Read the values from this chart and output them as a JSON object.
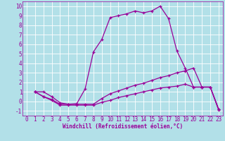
{
  "background_color": "#b2e0e8",
  "grid_color": "#ffffff",
  "line_color": "#990099",
  "marker": "+",
  "markersize": 3,
  "linewidth": 0.9,
  "markeredgewidth": 0.9,
  "xlabel": "Windchill (Refroidissement éolien,°C)",
  "xlabel_fontsize": 5.5,
  "tick_fontsize": 5.5,
  "xlim": [
    -0.5,
    23.5
  ],
  "ylim": [
    -1.5,
    10.5
  ],
  "xticks": [
    0,
    1,
    2,
    3,
    4,
    5,
    6,
    7,
    8,
    9,
    10,
    11,
    12,
    13,
    14,
    15,
    16,
    17,
    18,
    19,
    20,
    21,
    22,
    23
  ],
  "yticks": [
    -1,
    0,
    1,
    2,
    3,
    4,
    5,
    6,
    7,
    8,
    9,
    10
  ],
  "line1_x": [
    1,
    2,
    3,
    4,
    5,
    6,
    7,
    8,
    9,
    10,
    11,
    12,
    13,
    14,
    15,
    16,
    17,
    18,
    19,
    20,
    21,
    22,
    23
  ],
  "line1_y": [
    1.0,
    1.0,
    0.5,
    -0.15,
    -0.3,
    -0.25,
    1.3,
    5.2,
    6.5,
    8.8,
    9.0,
    9.2,
    9.5,
    9.3,
    9.5,
    10.0,
    8.7,
    5.3,
    3.5,
    1.5,
    1.5,
    1.5,
    -0.8
  ],
  "line2_x": [
    1,
    2,
    3,
    4,
    5,
    6,
    7,
    8,
    9,
    10,
    11,
    12,
    13,
    14,
    15,
    16,
    17,
    18,
    19,
    20,
    21,
    22,
    23
  ],
  "line2_y": [
    1.0,
    0.5,
    0.2,
    -0.3,
    -0.3,
    -0.3,
    -0.3,
    -0.3,
    0.3,
    0.8,
    1.1,
    1.4,
    1.7,
    1.9,
    2.2,
    2.5,
    2.7,
    3.0,
    3.2,
    3.5,
    1.5,
    1.5,
    -0.8
  ],
  "line3_x": [
    1,
    2,
    3,
    4,
    5,
    6,
    7,
    8,
    9,
    10,
    11,
    12,
    13,
    14,
    15,
    16,
    17,
    18,
    19,
    20,
    21,
    22,
    23
  ],
  "line3_y": [
    1.0,
    0.5,
    0.1,
    -0.4,
    -0.4,
    -0.4,
    -0.4,
    -0.4,
    -0.1,
    0.1,
    0.4,
    0.6,
    0.8,
    1.0,
    1.2,
    1.4,
    1.5,
    1.6,
    1.8,
    1.5,
    1.5,
    1.5,
    -0.9
  ]
}
